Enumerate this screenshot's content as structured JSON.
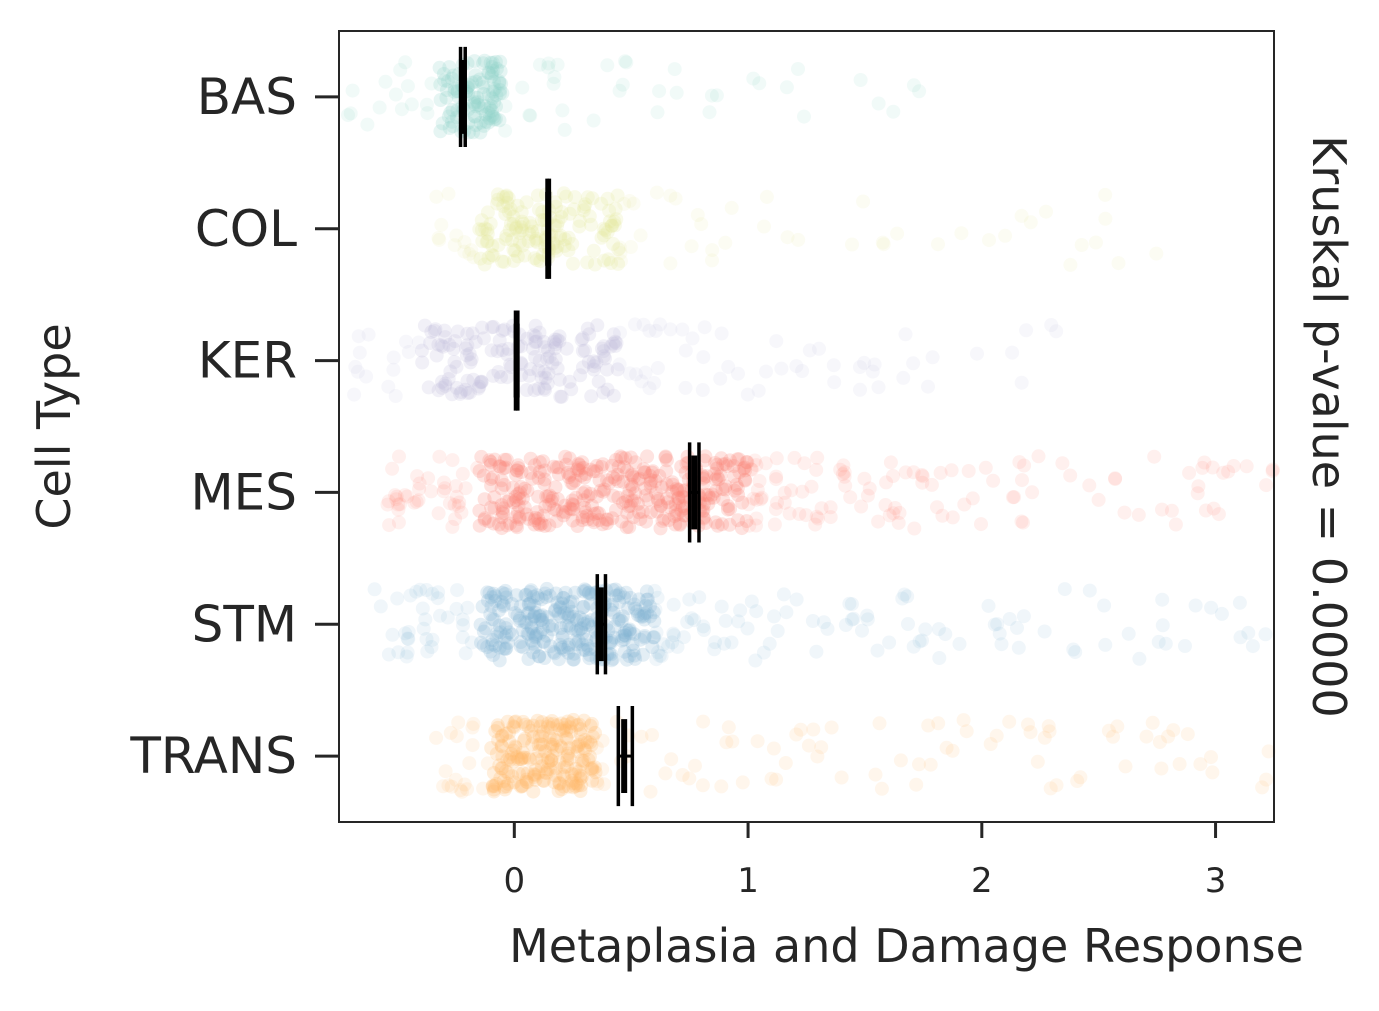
{
  "chart_data": {
    "type": "scatter",
    "subtype": "strip-plot-with-mean-and-ci",
    "orientation": "horizontal",
    "xlabel": "Metaplasia and Damage Response",
    "ylabel": "Cell Type",
    "right_label": "Kruskal p-value = 0.0000",
    "xlim": [
      -0.75,
      3.25
    ],
    "xticks": [
      0,
      1,
      2,
      3
    ],
    "grid": false,
    "legend": "none",
    "categories": [
      "BAS",
      "COL",
      "KER",
      "MES",
      "STM",
      "TRANS"
    ],
    "series": [
      {
        "name": "BAS",
        "color": "#8dd3c7",
        "core": [
          -0.32,
          -0.05
        ],
        "spread": [
          -0.75,
          1.75
        ],
        "n_points": 160,
        "mean": -0.22,
        "ci": [
          -0.23,
          -0.21
        ]
      },
      {
        "name": "COL",
        "color": "#e5e89a",
        "core": [
          -0.15,
          0.45
        ],
        "spread": [
          -0.4,
          2.9
        ],
        "n_points": 200,
        "mean": 0.145,
        "ci": [
          0.14,
          0.15
        ]
      },
      {
        "name": "KER",
        "color": "#bebada",
        "core": [
          -0.4,
          0.45
        ],
        "spread": [
          -0.75,
          2.4
        ],
        "n_points": 220,
        "mean": 0.01,
        "ci": [
          0.005,
          0.015
        ]
      },
      {
        "name": "MES",
        "color": "#fb8072",
        "core": [
          -0.15,
          1.0
        ],
        "spread": [
          -0.55,
          3.25
        ],
        "n_points": 520,
        "mean": 0.77,
        "ci": [
          0.75,
          0.79
        ]
      },
      {
        "name": "STM",
        "color": "#80b1d3",
        "core": [
          -0.15,
          0.6
        ],
        "spread": [
          -0.6,
          3.25
        ],
        "n_points": 420,
        "mean": 0.37,
        "ci": [
          0.355,
          0.39
        ]
      },
      {
        "name": "TRANS",
        "color": "#fdb462",
        "core": [
          -0.1,
          0.35
        ],
        "spread": [
          -0.35,
          3.25
        ],
        "n_points": 300,
        "mean": 0.47,
        "ci": [
          0.445,
          0.505
        ]
      }
    ]
  }
}
